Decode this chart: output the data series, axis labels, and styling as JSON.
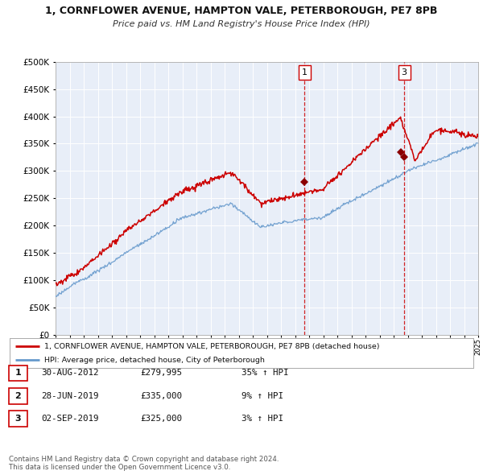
{
  "title_line1": "1, CORNFLOWER AVENUE, HAMPTON VALE, PETERBOROUGH, PE7 8PB",
  "title_line2": "Price paid vs. HM Land Registry's House Price Index (HPI)",
  "ylabel_values": [
    0,
    50000,
    100000,
    150000,
    200000,
    250000,
    300000,
    350000,
    400000,
    450000,
    500000
  ],
  "ylim": [
    0,
    500000
  ],
  "xmin": 1995,
  "xmax": 2025,
  "red_line_color": "#cc0000",
  "blue_line_color": "#6699cc",
  "chart_bg_color": "#e8eef8",
  "grid_color": "#ffffff",
  "background_color": "#ffffff",
  "legend_label_red": "1, CORNFLOWER AVENUE, HAMPTON VALE, PETERBOROUGH, PE7 8PB (detached house)",
  "legend_label_blue": "HPI: Average price, detached house, City of Peterborough",
  "annotated_sale_points": [
    {
      "id": 1,
      "year": 2012.67,
      "price": 279995,
      "label": "1"
    },
    {
      "id": 3,
      "year": 2019.75,
      "price": 325000,
      "label": "3"
    }
  ],
  "all_sale_points": [
    {
      "id": 1,
      "year": 2012.67,
      "price": 279995
    },
    {
      "id": 2,
      "year": 2019.5,
      "price": 335000
    },
    {
      "id": 3,
      "year": 2019.75,
      "price": 325000
    }
  ],
  "vertical_lines": [
    2012.67,
    2019.75
  ],
  "table_rows": [
    {
      "num": "1",
      "date": "30-AUG-2012",
      "price": "£279,995",
      "change": "35% ↑ HPI"
    },
    {
      "num": "2",
      "date": "28-JUN-2019",
      "price": "£335,000",
      "change": "9% ↑ HPI"
    },
    {
      "num": "3",
      "date": "02-SEP-2019",
      "price": "£325,000",
      "change": "3% ↑ HPI"
    }
  ],
  "footer_line1": "Contains HM Land Registry data © Crown copyright and database right 2024.",
  "footer_line2": "This data is licensed under the Open Government Licence v3.0."
}
